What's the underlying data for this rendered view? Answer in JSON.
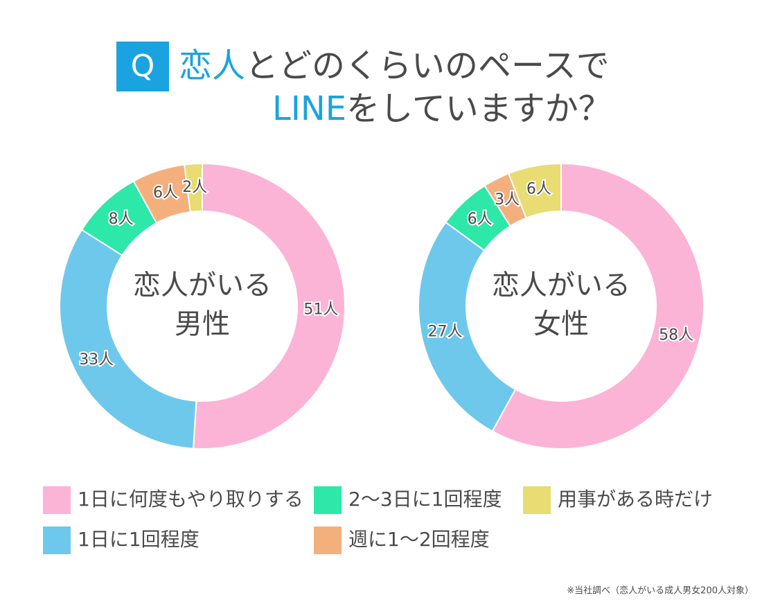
{
  "question_marker": "Q",
  "title_parts": [
    "恋人",
    "とどのくらいのペースで",
    "LINE",
    "をしていますか？"
  ],
  "chart_data": [
    {
      "type": "donut",
      "center_label": [
        "恋人がいる",
        "男性"
      ],
      "categories": [
        "1日に何度もやり取りする",
        "1日に1回程度",
        "2～3日に1回程度",
        "週に1～2回程度",
        "用事がある時だけ"
      ],
      "values": [
        51,
        33,
        8,
        6,
        2
      ],
      "value_labels": [
        "51人",
        "33人",
        "8人",
        "6人",
        "2人"
      ],
      "colors": [
        "#fbb3d6",
        "#6ec8ec",
        "#2de8a8",
        "#f4b07c",
        "#e8dc72"
      ]
    },
    {
      "type": "donut",
      "center_label": [
        "恋人がいる",
        "女性"
      ],
      "categories": [
        "1日に何度もやり取りする",
        "1日に1回程度",
        "2～3日に1回程度",
        "週に1～2回程度",
        "用事がある時だけ"
      ],
      "values": [
        58,
        27,
        6,
        3,
        6
      ],
      "value_labels": [
        "58人",
        "27人",
        "6人",
        "3人",
        "6人"
      ],
      "colors": [
        "#fbb3d6",
        "#6ec8ec",
        "#2de8a8",
        "#f4b07c",
        "#e8dc72"
      ]
    }
  ],
  "source": "※当社調べ（恋人がいる成人男女200人対象）"
}
